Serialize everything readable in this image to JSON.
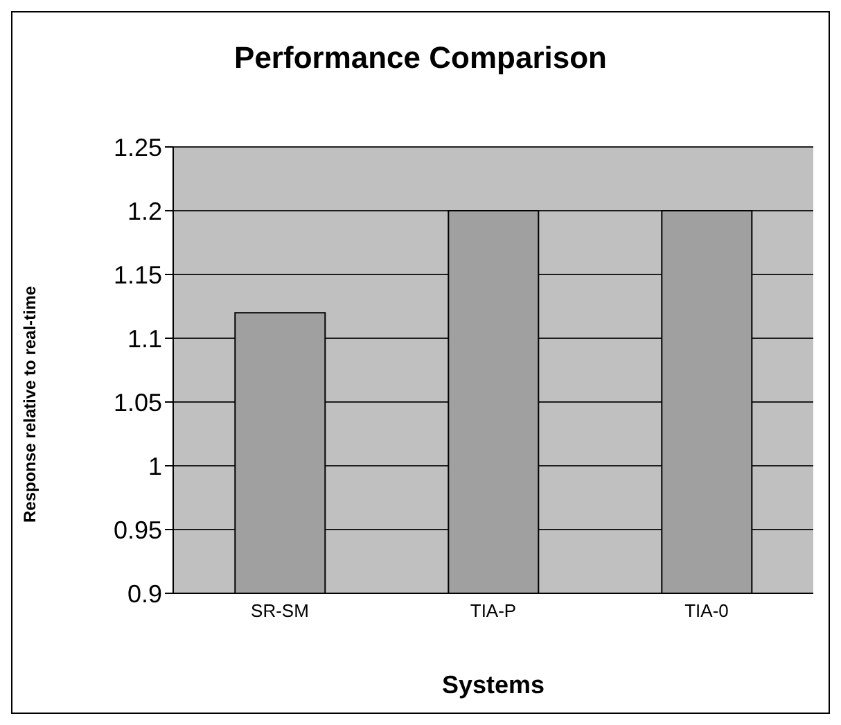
{
  "chart_data": {
    "type": "bar",
    "title": "Performance Comparison",
    "xlabel": "Systems",
    "ylabel": "Response relative to real-time",
    "categories": [
      "SR-SM",
      "TIA-P",
      "TIA-0"
    ],
    "values": [
      1.12,
      1.2,
      1.2
    ],
    "color": "#a0a0a0",
    "ylim": [
      0.9,
      1.25
    ],
    "yticks": [
      0.9,
      0.95,
      1,
      1.05,
      1.1,
      1.15,
      1.2,
      1.25
    ],
    "grid": "y",
    "legend": false
  }
}
